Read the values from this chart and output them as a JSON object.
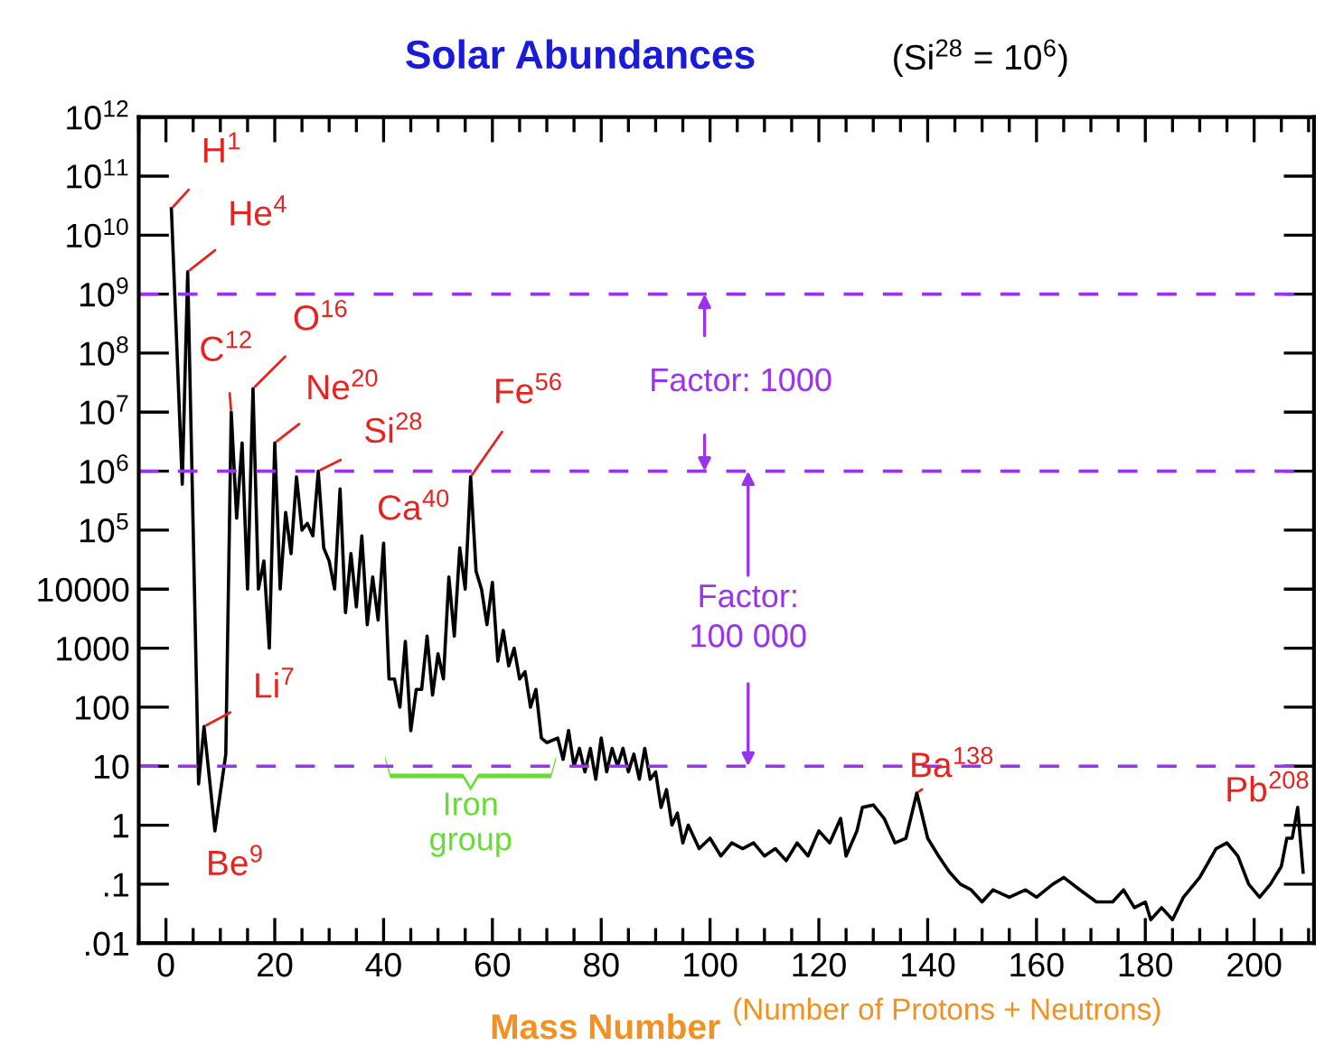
{
  "chart_data": {
    "type": "line",
    "title": "Solar Abundances",
    "subtitle": "(Si$^{28}$ = 10$^{6}$)",
    "xlabel": "Mass Number",
    "x": [
      1,
      3,
      4,
      6,
      7,
      9,
      11,
      12,
      13,
      14,
      15,
      16,
      17,
      18,
      19,
      20,
      21,
      22,
      23,
      24,
      25,
      26,
      27,
      28,
      29,
      30,
      31,
      32,
      33,
      34,
      35,
      36,
      37,
      38,
      39,
      40,
      41,
      42,
      43,
      44,
      45,
      46,
      47,
      48,
      49,
      50,
      51,
      52,
      53,
      54,
      55,
      56,
      57,
      58,
      59,
      60,
      61,
      62,
      63,
      64,
      65,
      66,
      67,
      68,
      69,
      70,
      72,
      73,
      74,
      75,
      76,
      77,
      78,
      79,
      80,
      81,
      82,
      83,
      84,
      85,
      86,
      87,
      88,
      89,
      90,
      91,
      92,
      93,
      94,
      95,
      96,
      98,
      100,
      102,
      104,
      106,
      108,
      110,
      112,
      114,
      116,
      118,
      120,
      122,
      124,
      125,
      127,
      128,
      130,
      132,
      134,
      136,
      138,
      140,
      142,
      144,
      146,
      148,
      150,
      152,
      155,
      158,
      160,
      163,
      165,
      168,
      171,
      174,
      176,
      178,
      180,
      181,
      183,
      185,
      187,
      190,
      193,
      195,
      197,
      199,
      201,
      203,
      205,
      206,
      207,
      208,
      209
    ],
    "series": [
      {
        "color": "#000000",
        "values": [
          28000000000.0,
          600000.0,
          2400000000.0,
          5,
          47,
          0.8,
          16,
          10000000.0,
          160000.0,
          3000000.0,
          10000.0,
          25000000.0,
          10000.0,
          30000.0,
          1000,
          3000000.0,
          10000.0,
          200000.0,
          40000.0,
          800000.0,
          100000.0,
          130000.0,
          80000.0,
          1000000.0,
          50000.0,
          30000.0,
          10000.0,
          500000.0,
          4000,
          40000.0,
          5000,
          80000.0,
          2500,
          16000.0,
          3000,
          60000.0,
          300,
          300,
          100,
          1300,
          40,
          200,
          200,
          1600,
          160,
          800,
          300,
          16000.0,
          1600,
          50000.0,
          10000.0,
          800000.0,
          20000.0,
          10000.0,
          2500,
          13000.0,
          600,
          2000,
          500,
          1000,
          300,
          400,
          100,
          200,
          30,
          25,
          30,
          13,
          40,
          10,
          20,
          8,
          20,
          6,
          30,
          8,
          20,
          10,
          20,
          8,
          16,
          6,
          20,
          6,
          8,
          2,
          4,
          1,
          1.6,
          0.5,
          1,
          0.4,
          0.6,
          0.3,
          0.5,
          0.4,
          0.5,
          0.3,
          0.4,
          0.25,
          0.5,
          0.3,
          0.8,
          0.5,
          1.3,
          0.3,
          0.8,
          2,
          2.2,
          1.3,
          0.5,
          0.6,
          3.5,
          0.6,
          0.3,
          0.16,
          0.1,
          0.08,
          0.05,
          0.08,
          0.06,
          0.08,
          0.06,
          0.1,
          0.13,
          0.08,
          0.05,
          0.05,
          0.08,
          0.04,
          0.05,
          0.025,
          0.04,
          0.025,
          0.06,
          0.13,
          0.4,
          0.5,
          0.3,
          0.1,
          0.06,
          0.1,
          0.2,
          0.6,
          0.6,
          2,
          0.16
        ]
      }
    ],
    "log": "y",
    "xlim": [
      -5,
      211
    ],
    "xticks": [
      0,
      20,
      40,
      60,
      80,
      100,
      120,
      140,
      160,
      180,
      200
    ],
    "ylim": [
      0.01,
      1000000000000.0
    ],
    "yticks": [
      {
        "value": 1000000000000.0,
        "label": "10$^{12}$"
      },
      {
        "value": 100000000000.0,
        "label": "10$^{11}$"
      },
      {
        "value": 10000000000.0,
        "label": "10$^{10}$"
      },
      {
        "value": 1000000000.0,
        "label": "10$^{9}$"
      },
      {
        "value": 100000000.0,
        "label": "10$^{8}$"
      },
      {
        "value": 10000000.0,
        "label": "10$^{7}$"
      },
      {
        "value": 1000000.0,
        "label": "10$^{6}$"
      },
      {
        "value": 100000.0,
        "label": "10$^{5}$"
      },
      10000,
      1000,
      100,
      10,
      1,
      {
        "value": 0.1,
        "label": ".1"
      },
      {
        "value": 0.01,
        "label": ".01"
      }
    ],
    "grid": false,
    "legend": false,
    "marker": "none",
    "line_style": "solid",
    "ref_lines": [
      {
        "axis": "y",
        "value": 1000000000.0,
        "color": "#9933ee",
        "line_style": "dashed"
      },
      {
        "axis": "y",
        "value": 1000000.0,
        "color": "#9933ee",
        "line_style": "dashed"
      },
      {
        "axis": "y",
        "value": 10,
        "color": "#9933ee",
        "line_style": "dashed"
      }
    ],
    "annotations": [
      "(Number of Protons + Neutrons)",
      {
        "text": "H$^{1}$",
        "x": 1,
        "y": 28000000000.0
      },
      {
        "text": "He$^{4}$",
        "x": 4,
        "y": 2400000000.0
      },
      {
        "text": "C$^{12}$",
        "x": 12,
        "y": 10000000.0
      },
      {
        "text": "O$^{16}$",
        "x": 16,
        "y": 25000000.0
      },
      {
        "text": "Ne$^{20}$",
        "x": 20,
        "y": 3000000.0
      },
      {
        "text": "Si$^{28}$",
        "x": 28,
        "y": 1000000.0
      },
      {
        "text": "Ca$^{40}$",
        "x": 40,
        "y": 60000.0
      },
      {
        "text": "Fe$^{56}$",
        "x": 56,
        "y": 800000.0
      },
      {
        "text": "Li$^{7}$",
        "x": 7,
        "y": 47
      },
      {
        "text": "Be$^{9}$",
        "x": 9,
        "y": 0.8
      },
      {
        "text": "Ba$^{138}$",
        "x": 138,
        "y": 3.5
      },
      {
        "text": "Pb$^{208}$",
        "x": 208,
        "y": 2
      },
      {
        "text": "Iron\ngroup",
        "x": 56,
        "y": 10
      },
      {
        "text": "Factor: 1000",
        "x": 99,
        "y": 1000000000.0
      },
      {
        "text": "Factor:\n100 000",
        "x": 107,
        "y": 1000000.0
      }
    ]
  }
}
